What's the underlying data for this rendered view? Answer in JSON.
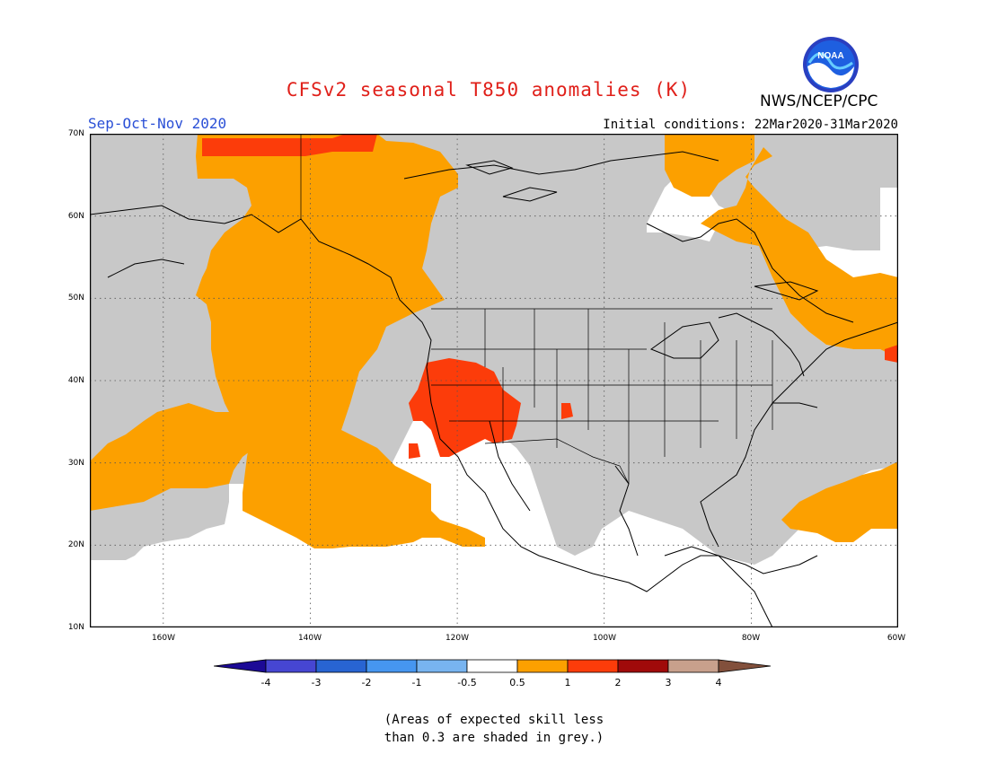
{
  "header": {
    "title": "CFSv2 seasonal T850 anomalies (K)",
    "period": "Sep-Oct-Nov 2020",
    "initial_conditions": "Initial conditions: 22Mar2020-31Mar2020",
    "agency": "NWS/NCEP/CPC",
    "logo_text": "NOAA"
  },
  "map": {
    "lat_range": [
      10,
      70
    ],
    "lon_range": [
      -170,
      -60
    ],
    "lat_labels": [
      "70N",
      "60N",
      "50N",
      "40N",
      "30N",
      "20N",
      "10N"
    ],
    "lon_labels": [
      "160W",
      "140W",
      "120W",
      "100W",
      "80W",
      "60W"
    ],
    "colors": {
      "grey_low_skill": "#c8c8c8",
      "pos_0_5_to_1": "#fca000",
      "pos_1_to_2": "#fc3c0a",
      "land_outline": "#000000",
      "background": "#ffffff"
    }
  },
  "colorbar": {
    "labels": [
      "-4",
      "-3",
      "-2",
      "-1",
      "-0.5",
      "0.5",
      "1",
      "2",
      "3",
      "4"
    ],
    "colors": [
      "#1c0a96",
      "#4646d2",
      "#2864d2",
      "#4696f0",
      "#78b4f0",
      "#ffffff",
      "#fca000",
      "#fc3c0a",
      "#a00a0a",
      "#c8a08c",
      "#82503c"
    ]
  },
  "note": {
    "line1": "(Areas of expected skill less",
    "line2": "than 0.3 are shaded in grey.)"
  }
}
